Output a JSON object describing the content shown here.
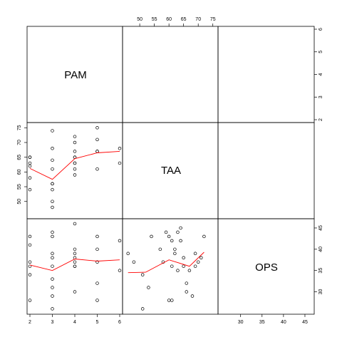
{
  "chart_data": {
    "type": "scatter",
    "variables": [
      {
        "name": "PAM",
        "ticks": [
          2,
          3,
          4,
          5,
          6
        ],
        "range": [
          2,
          6
        ]
      },
      {
        "name": "TAA",
        "ticks": [
          50,
          55,
          60,
          65,
          70,
          75
        ],
        "range": [
          45.1,
          75.8
        ]
      },
      {
        "name": "OPS",
        "ticks": [
          30,
          35,
          40,
          45
        ],
        "range": [
          25.4,
          46.5
        ]
      }
    ],
    "axis_ticks": {
      "PAM_right": [
        2,
        3,
        4,
        5,
        6
      ],
      "TAA_top": [
        50,
        55,
        60,
        65,
        70,
        75
      ],
      "TAA_left": [
        50,
        55,
        60,
        65,
        70,
        75
      ],
      "OPS_right": [
        30,
        35,
        40,
        45
      ],
      "PAM_bottom": [
        2,
        3,
        4,
        5,
        6
      ],
      "OPS_bottom": [
        30,
        35,
        40,
        45
      ]
    },
    "panels": [
      {
        "x": "PAM",
        "y": "TAA",
        "points": [
          [
            2,
            65
          ],
          [
            2,
            65
          ],
          [
            2,
            63
          ],
          [
            2,
            62
          ],
          [
            2,
            58
          ],
          [
            2,
            54
          ],
          [
            3,
            74
          ],
          [
            3,
            68
          ],
          [
            3,
            64
          ],
          [
            3,
            61
          ],
          [
            3,
            56
          ],
          [
            3,
            56
          ],
          [
            3,
            54
          ],
          [
            3,
            50
          ],
          [
            3,
            48
          ],
          [
            4,
            72
          ],
          [
            4,
            70
          ],
          [
            4,
            67
          ],
          [
            4,
            65
          ],
          [
            4,
            65
          ],
          [
            4,
            63
          ],
          [
            4,
            63
          ],
          [
            4,
            61
          ],
          [
            4,
            59
          ],
          [
            5,
            75
          ],
          [
            5,
            71
          ],
          [
            5,
            67
          ],
          [
            5,
            67
          ],
          [
            5,
            61
          ],
          [
            6,
            68
          ],
          [
            6,
            63
          ]
        ],
        "smooth": [
          [
            2,
            61.2
          ],
          [
            3,
            57.5
          ],
          [
            4,
            64.5
          ],
          [
            5,
            66.5
          ],
          [
            6,
            67
          ]
        ]
      },
      {
        "x": "PAM",
        "y": "OPS",
        "points": [
          [
            2,
            43
          ],
          [
            2,
            41
          ],
          [
            2,
            37
          ],
          [
            2,
            36
          ],
          [
            2,
            34
          ],
          [
            2,
            28
          ],
          [
            3,
            44
          ],
          [
            3,
            43
          ],
          [
            3,
            39
          ],
          [
            3,
            38
          ],
          [
            3,
            36
          ],
          [
            3,
            33
          ],
          [
            3,
            31
          ],
          [
            3,
            29
          ],
          [
            3,
            26
          ],
          [
            4,
            46
          ],
          [
            4,
            40
          ],
          [
            4,
            39
          ],
          [
            4,
            38
          ],
          [
            4,
            37
          ],
          [
            4,
            36
          ],
          [
            4,
            36
          ],
          [
            4,
            30
          ],
          [
            5,
            43
          ],
          [
            5,
            40
          ],
          [
            5,
            37
          ],
          [
            5,
            32
          ],
          [
            5,
            28
          ],
          [
            6,
            42
          ],
          [
            6,
            35
          ]
        ],
        "smooth": [
          [
            2,
            36.3
          ],
          [
            3,
            35
          ],
          [
            4,
            37.7
          ],
          [
            5,
            37.2
          ],
          [
            6,
            37.5
          ]
        ]
      },
      {
        "x": "TAA",
        "y": "OPS",
        "points": [
          [
            46,
            39
          ],
          [
            48,
            37
          ],
          [
            51,
            34
          ],
          [
            53,
            31
          ],
          [
            54,
            43
          ],
          [
            51,
            26
          ],
          [
            57,
            40
          ],
          [
            58,
            37
          ],
          [
            59,
            44
          ],
          [
            60,
            43
          ],
          [
            61,
            36
          ],
          [
            61,
            42
          ],
          [
            62,
            39
          ],
          [
            62,
            40
          ],
          [
            63,
            35
          ],
          [
            63,
            44
          ],
          [
            64,
            45
          ],
          [
            64,
            42
          ],
          [
            65,
            38
          ],
          [
            65,
            36
          ],
          [
            66,
            32
          ],
          [
            66,
            30
          ],
          [
            67,
            35
          ],
          [
            68,
            29
          ],
          [
            69,
            39
          ],
          [
            69,
            36
          ],
          [
            70,
            37
          ],
          [
            71,
            38
          ],
          [
            72,
            43
          ],
          [
            60,
            28
          ],
          [
            61,
            28
          ]
        ],
        "smooth": [
          [
            46,
            34.5
          ],
          [
            52,
            34.6
          ],
          [
            60,
            37.5
          ],
          [
            67,
            36
          ],
          [
            72,
            39.3
          ]
        ]
      }
    ],
    "grid": false,
    "title": "",
    "xlabel": "",
    "ylabel": "",
    "colors": {
      "points": "#000000",
      "smooth": "#ff0000",
      "frame": "#000000"
    }
  }
}
